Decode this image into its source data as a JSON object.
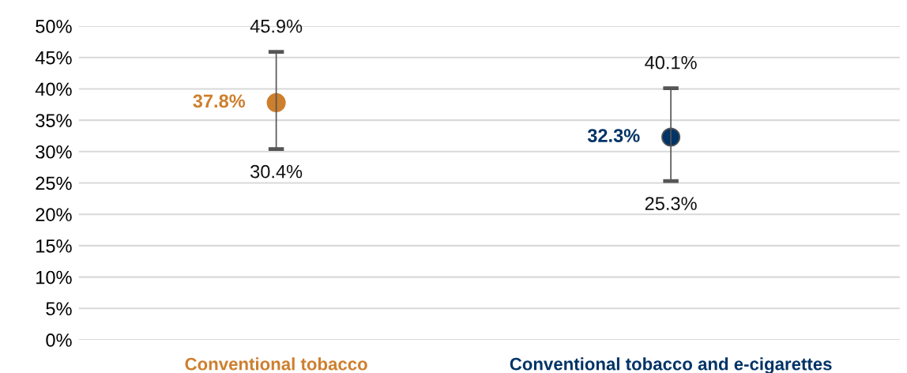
{
  "chart_data": {
    "type": "scatter",
    "categories": [
      "Conventional tobacco",
      "Conventional tobacco and e-cigarettes"
    ],
    "values": [
      37.8,
      32.3
    ],
    "colors": [
      "#cd7f2e",
      "#003366"
    ],
    "errors": [
      [
        30.4,
        45.9
      ],
      [
        25.3,
        40.1
      ]
    ],
    "value_labels": [
      "37.8%",
      "32.3%"
    ],
    "annotations": [
      {
        "text": "45.9%",
        "x": "Conventional tobacco",
        "y": 45.9
      },
      {
        "text": "30.4%",
        "x": "Conventional tobacco",
        "y": 30.4
      },
      {
        "text": "40.1%",
        "x": "Conventional tobacco and e-cigarettes",
        "y": 40.1
      },
      {
        "text": "25.3%",
        "x": "Conventional tobacco and e-cigarettes",
        "y": 25.3
      }
    ],
    "ylim": [
      0,
      50
    ],
    "yticks": [
      {
        "value": 0,
        "label": "0%"
      },
      {
        "value": 5,
        "label": "5%"
      },
      {
        "value": 10,
        "label": "10%"
      },
      {
        "value": 15,
        "label": "15%"
      },
      {
        "value": 20,
        "label": "20%"
      },
      {
        "value": 25,
        "label": "25%"
      },
      {
        "value": 30,
        "label": "30%"
      },
      {
        "value": 35,
        "label": "35%"
      },
      {
        "value": 40,
        "label": "40%"
      },
      {
        "value": 45,
        "label": "45%"
      },
      {
        "value": 50,
        "label": "50%"
      }
    ],
    "grid": "y",
    "marker": "circle"
  }
}
